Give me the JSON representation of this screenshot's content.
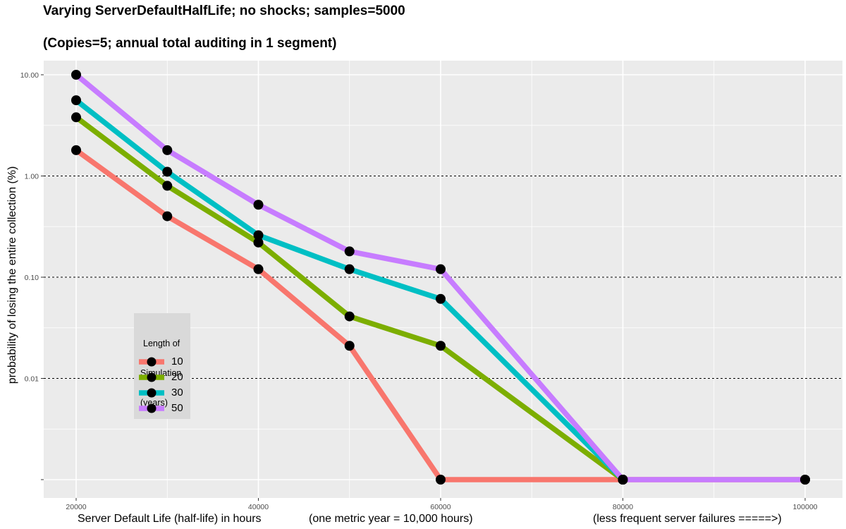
{
  "title_line1": "Varying ServerDefaultHalfLife; no shocks; samples=5000",
  "title_line2": "(Copies=5; annual total auditing in 1 segment)",
  "xlabel_parts": [
    "Server Default Life (half-life) in hours",
    "(one metric year = 10,000 hours)",
    "(less frequent server failures =====>)"
  ],
  "legend": {
    "title_lines": [
      "Length of",
      "Simulation",
      "(years)"
    ]
  },
  "colors": {
    "panel": "#ebebeb",
    "grid": "#ffffff",
    "marker": "#000000"
  },
  "chart_data": {
    "type": "line",
    "y_scale": "log10",
    "ylabel": "probability of losing the entire collection (%)",
    "x": [
      20000,
      30000,
      40000,
      50000,
      60000,
      80000,
      100000
    ],
    "xlim": [
      20000,
      100000
    ],
    "x_ticks": [
      20000,
      40000,
      60000,
      80000,
      100000
    ],
    "x_tick_labels": [
      "20000",
      "40000",
      "60000",
      "80000",
      "100000"
    ],
    "ylim": [
      0.001,
      10
    ],
    "y_ticks": [
      0.001,
      0.01,
      0.1,
      1,
      10
    ],
    "y_tick_labels": [
      "",
      "0.01",
      "0.10",
      "1.00",
      "10.00"
    ],
    "y_dashed_lines": [
      0.01,
      0.1,
      1
    ],
    "grid": true,
    "legend_position": "bottom-left inside",
    "series": [
      {
        "name": "10",
        "color": "#f8766d",
        "x": [
          20000,
          30000,
          40000,
          50000,
          60000,
          80000,
          100000
        ],
        "values": [
          1.8,
          0.4,
          0.12,
          0.021,
          0.001,
          0.001,
          0.001
        ]
      },
      {
        "name": "20",
        "color": "#7cae00",
        "x": [
          20000,
          30000,
          40000,
          50000,
          60000,
          80000
        ],
        "values": [
          3.8,
          0.8,
          0.22,
          0.041,
          0.021,
          0.001
        ]
      },
      {
        "name": "30",
        "color": "#00bfc4",
        "x": [
          20000,
          30000,
          40000,
          50000,
          60000,
          80000
        ],
        "values": [
          5.6,
          1.1,
          0.26,
          0.12,
          0.061,
          0.001
        ]
      },
      {
        "name": "50",
        "color": "#c77cff",
        "x": [
          20000,
          30000,
          40000,
          50000,
          60000,
          80000,
          100000
        ],
        "values": [
          10,
          1.8,
          0.52,
          0.18,
          0.12,
          0.001,
          0.001
        ]
      }
    ]
  }
}
